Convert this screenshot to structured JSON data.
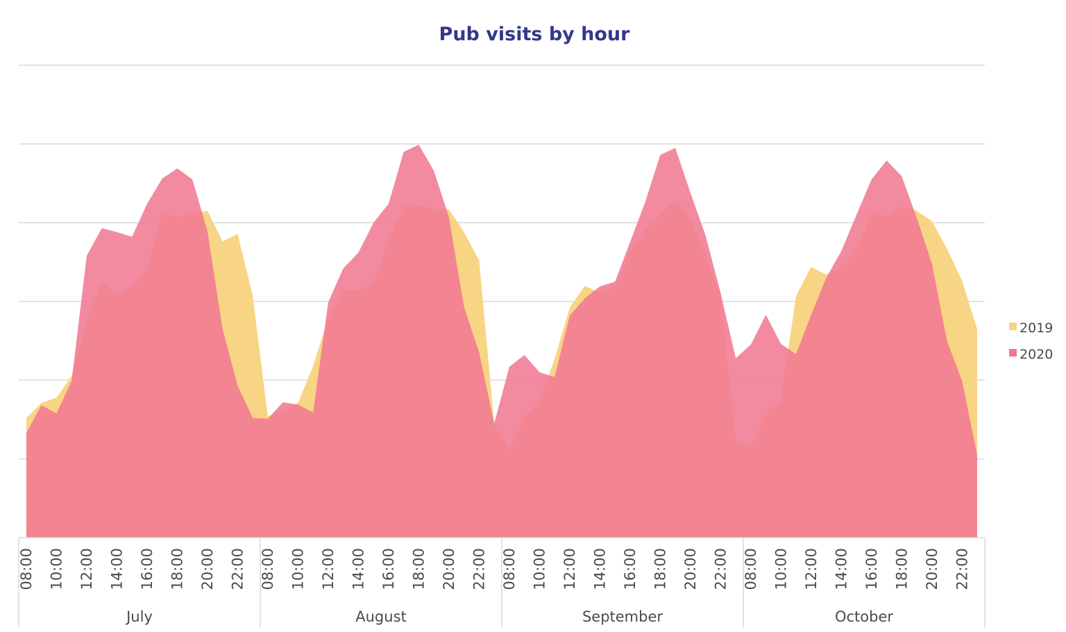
{
  "chart_data": {
    "type": "area",
    "title": "Pub visits by hour",
    "xlabel": "",
    "ylabel": "",
    "grid": true,
    "legend_position": "right",
    "groups": [
      "July",
      "August",
      "September",
      "October"
    ],
    "hours": [
      "08:00",
      "09:00",
      "10:00",
      "11:00",
      "12:00",
      "13:00",
      "14:00",
      "15:00",
      "16:00",
      "17:00",
      "18:00",
      "19:00",
      "20:00",
      "21:00",
      "22:00",
      "23:00"
    ],
    "tick_labels": [
      "08:00",
      "10:00",
      "12:00",
      "14:00",
      "16:00",
      "18:00",
      "20:00",
      "22:00"
    ],
    "ylim": [
      0,
      6
    ],
    "gridline_count": 6,
    "series": [
      {
        "name": "2019",
        "color": "#f8d584",
        "values": [
          1.52,
          1.71,
          1.78,
          2.05,
          2.74,
          3.26,
          3.07,
          3.19,
          3.41,
          4.13,
          4.07,
          4.11,
          4.15,
          3.76,
          3.86,
          3.07,
          1.54,
          1.62,
          1.71,
          2.18,
          2.79,
          3.14,
          3.14,
          3.24,
          3.76,
          4.22,
          4.22,
          4.17,
          4.17,
          3.88,
          3.52,
          1.45,
          1.11,
          1.53,
          1.74,
          2.27,
          2.92,
          3.2,
          3.11,
          3.17,
          3.62,
          3.91,
          4.1,
          4.3,
          4.05,
          3.6,
          3.07,
          1.25,
          1.14,
          1.57,
          1.75,
          3.07,
          3.44,
          3.34,
          3.44,
          3.64,
          4.13,
          4.08,
          4.21,
          4.15,
          4.02,
          3.67,
          3.26,
          2.65
        ]
      },
      {
        "name": "2020",
        "color": "#f07a93",
        "values": [
          1.33,
          1.68,
          1.58,
          1.99,
          3.58,
          3.93,
          3.88,
          3.82,
          4.24,
          4.56,
          4.69,
          4.55,
          3.89,
          2.65,
          1.93,
          1.52,
          1.51,
          1.72,
          1.69,
          1.59,
          2.99,
          3.42,
          3.62,
          4.0,
          4.24,
          4.9,
          4.99,
          4.66,
          4.07,
          2.93,
          2.35,
          1.45,
          2.17,
          2.32,
          2.1,
          2.04,
          2.82,
          3.04,
          3.19,
          3.25,
          3.75,
          4.26,
          4.86,
          4.95,
          4.38,
          3.84,
          3.11,
          2.28,
          2.45,
          2.83,
          2.46,
          2.33,
          2.83,
          3.3,
          3.64,
          4.1,
          4.55,
          4.79,
          4.59,
          4.06,
          3.48,
          2.5,
          1.99,
          1.05
        ]
      }
    ]
  }
}
